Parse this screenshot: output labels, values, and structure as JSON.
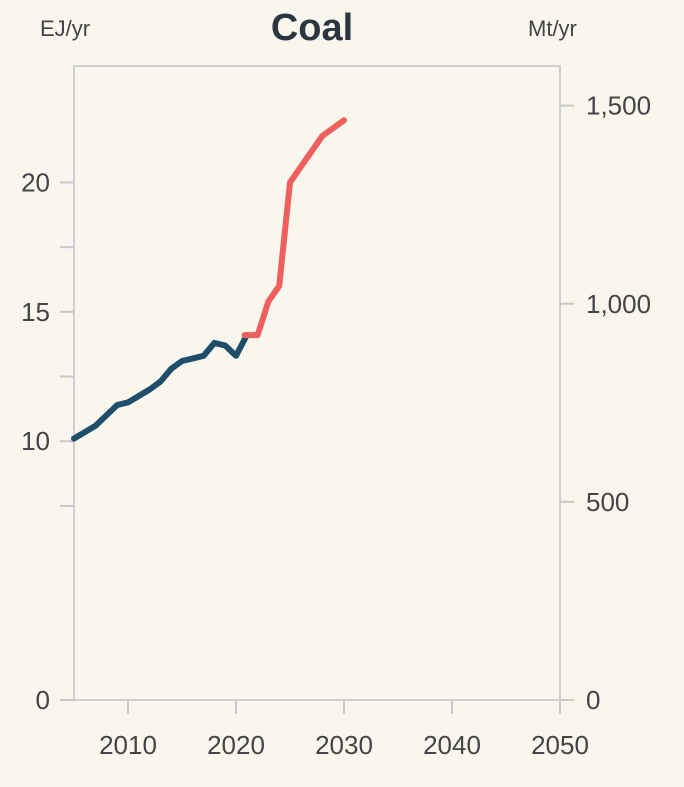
{
  "chart_data": {
    "type": "line",
    "title": "Coal",
    "left_unit": "EJ/yr",
    "right_unit": "Mt/yr",
    "xlim": [
      2005,
      2050
    ],
    "x_ticks": [
      "2010",
      "2020",
      "2030",
      "2040",
      "2050"
    ],
    "left_axis": {
      "ylim": [
        0,
        24.5
      ],
      "tick_labels": [
        "0",
        "10",
        "15",
        "20"
      ]
    },
    "right_axis": {
      "ylim": [
        0,
        1600
      ],
      "tick_labels": [
        "0",
        "500",
        "1,000",
        "1,500"
      ]
    },
    "grid": false,
    "series": [
      {
        "color": "#1f4e6b",
        "x": [
          2005,
          2007,
          2009,
          2010,
          2012,
          2013,
          2014,
          2015,
          2016,
          2017,
          2018,
          2019,
          2020,
          2021
        ],
        "y": [
          10.1,
          10.6,
          11.4,
          11.5,
          12.0,
          12.3,
          12.8,
          13.1,
          13.2,
          13.3,
          13.8,
          13.7,
          13.3,
          14.1
        ]
      },
      {
        "color": "#ef5f5d",
        "x": [
          2020.8,
          2022,
          2023,
          2024,
          2025,
          2026,
          2027,
          2028,
          2029,
          2030
        ],
        "y": [
          14.1,
          14.1,
          15.4,
          16.0,
          20.0,
          20.6,
          21.2,
          21.8,
          22.1,
          22.4
        ]
      }
    ]
  }
}
